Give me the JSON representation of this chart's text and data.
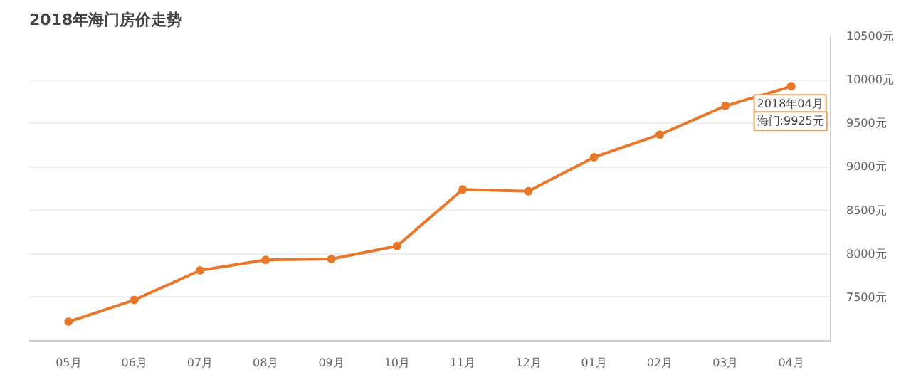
{
  "chart_data": {
    "type": "line",
    "title": "2018年海门房价走势",
    "categories": [
      "05月",
      "06月",
      "07月",
      "08月",
      "09月",
      "10月",
      "11月",
      "12月",
      "01月",
      "02月",
      "03月",
      "04月"
    ],
    "series": [
      {
        "color": "#e8772a",
        "values": [
          7220,
          7470,
          7810,
          7930,
          7940,
          8090,
          8740,
          8720,
          9110,
          9370,
          9700,
          9925
        ]
      }
    ],
    "ylim": [
      7000,
      10500
    ],
    "yticks": [
      {
        "value": 7500,
        "label": "7500元"
      },
      {
        "value": 8000,
        "label": "8000元"
      },
      {
        "value": 8500,
        "label": "8500元"
      },
      {
        "value": 9000,
        "label": "9000元"
      },
      {
        "value": 9500,
        "label": "9500元"
      },
      {
        "value": 10000,
        "label": "10000元"
      },
      {
        "value": 10500,
        "label": "10500元"
      }
    ],
    "grid": "y",
    "marker": "circle",
    "line_style": "solid",
    "annotations": [
      {
        "text": "2018年04月",
        "x": "04月",
        "y": 9925
      },
      {
        "text": "海门:9925元",
        "x": "04月",
        "y": 9925
      }
    ]
  }
}
